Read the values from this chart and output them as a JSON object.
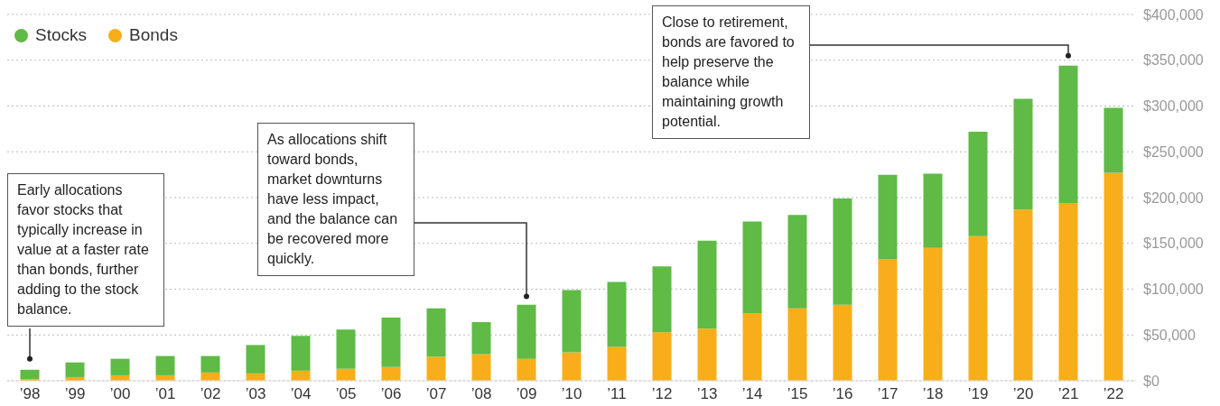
{
  "chart_data": {
    "type": "bar",
    "stacked": true,
    "categories": [
      "’98",
      "’99",
      "’00",
      "’01",
      "’02",
      "’03",
      "’04",
      "’05",
      "’06",
      "’07",
      "’08",
      "’09",
      "’10",
      "’11",
      "’12",
      "’13",
      "’14",
      "’15",
      "’16",
      "’17",
      "’18",
      "’19",
      "’20",
      "’21",
      "’22"
    ],
    "series": [
      {
        "name": "Bonds",
        "color": "#f8ae1a",
        "values": [
          2000,
          4000,
          6000,
          6000,
          9000,
          8000,
          11000,
          13000,
          15000,
          26000,
          29000,
          24000,
          31000,
          37000,
          53000,
          57000,
          74000,
          79000,
          83000,
          133000,
          145000,
          158000,
          187000,
          194000,
          227000
        ]
      },
      {
        "name": "Stocks",
        "color": "#5fba46",
        "values": [
          10000,
          16000,
          18000,
          21000,
          18000,
          31000,
          38000,
          43000,
          54000,
          53000,
          35000,
          59000,
          68000,
          71000,
          72000,
          96000,
          100000,
          102000,
          116000,
          92000,
          81000,
          114000,
          121000,
          150000,
          71000
        ]
      }
    ],
    "ylim": [
      0,
      400000
    ],
    "yticks": [
      {
        "value": 0,
        "label": "$0"
      },
      {
        "value": 50000,
        "label": "$50,000"
      },
      {
        "value": 100000,
        "label": "$100,000"
      },
      {
        "value": 150000,
        "label": "$150,000"
      },
      {
        "value": 200000,
        "label": "$200,000"
      },
      {
        "value": 250000,
        "label": "$250,000"
      },
      {
        "value": 300000,
        "label": "$300,000"
      },
      {
        "value": 350000,
        "label": "$350,000"
      },
      {
        "value": 400000,
        "label": "$400,000"
      }
    ],
    "grid": "y",
    "legend": "top left",
    "annotations": [
      {
        "text": "Early allocations favor stocks that typically increase in value at a faster rate than bonds, further adding to the stock balance.",
        "x": "’98",
        "y": 24000
      },
      {
        "text": "As allocations shift toward bonds, market downturns have less impact, and the balance can be recovered more quickly.",
        "x": "’09",
        "y": 92000
      },
      {
        "text": "Close to retirement, bonds are favored to help preserve the balance while maintaining growth potential.",
        "x": "’21",
        "y": 355000
      }
    ]
  }
}
